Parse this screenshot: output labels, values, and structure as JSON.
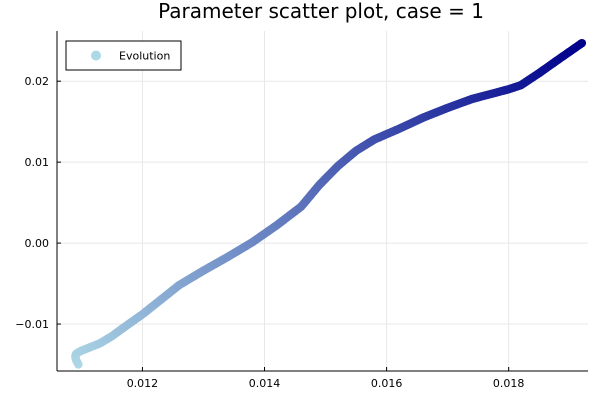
{
  "chart_data": {
    "type": "scatter",
    "title": "Parameter scatter plot, case = 1",
    "xlabel": "",
    "ylabel": "",
    "xlim": [
      0.0106,
      0.0193
    ],
    "ylim": [
      -0.0158,
      0.0262
    ],
    "x_ticks": [
      0.012,
      0.014,
      0.016,
      0.018
    ],
    "x_tick_labels": [
      "0.012",
      "0.014",
      "0.016",
      "0.018"
    ],
    "y_ticks": [
      -0.01,
      0.0,
      0.01,
      0.02
    ],
    "y_tick_labels": [
      "−0.01",
      "0.00",
      "0.01",
      "0.02"
    ],
    "grid": true,
    "legend": {
      "position": "top-left",
      "entries": [
        "Evolution"
      ]
    },
    "color_start": "#ADD8E6",
    "color_end": "#00008B",
    "legend_marker_color": "#ADD8E6",
    "series": [
      {
        "name": "Evolution",
        "x": [
          0.01095,
          0.01093,
          0.01091,
          0.0109,
          0.01091,
          0.01095,
          0.011,
          0.0111,
          0.0113,
          0.0115,
          0.0117,
          0.012,
          0.0123,
          0.0126,
          0.013,
          0.0134,
          0.0138,
          0.0142,
          0.0146,
          0.0149,
          0.0152,
          0.0155,
          0.0158,
          0.0162,
          0.0166,
          0.017,
          0.0174,
          0.0178,
          0.018,
          0.0182,
          0.0185,
          0.0188,
          0.0192
        ],
        "y": [
          -0.015,
          -0.0147,
          -0.0144,
          -0.014,
          -0.0137,
          -0.0135,
          -0.0133,
          -0.013,
          -0.0124,
          -0.0115,
          -0.0104,
          -0.0088,
          -0.007,
          -0.0052,
          -0.0034,
          -0.0017,
          0.0001,
          0.0022,
          0.0045,
          0.0072,
          0.0095,
          0.0114,
          0.0128,
          0.0141,
          0.0155,
          0.0167,
          0.0178,
          0.0186,
          0.019,
          0.0195,
          0.021,
          0.0226,
          0.0247
        ]
      }
    ]
  }
}
